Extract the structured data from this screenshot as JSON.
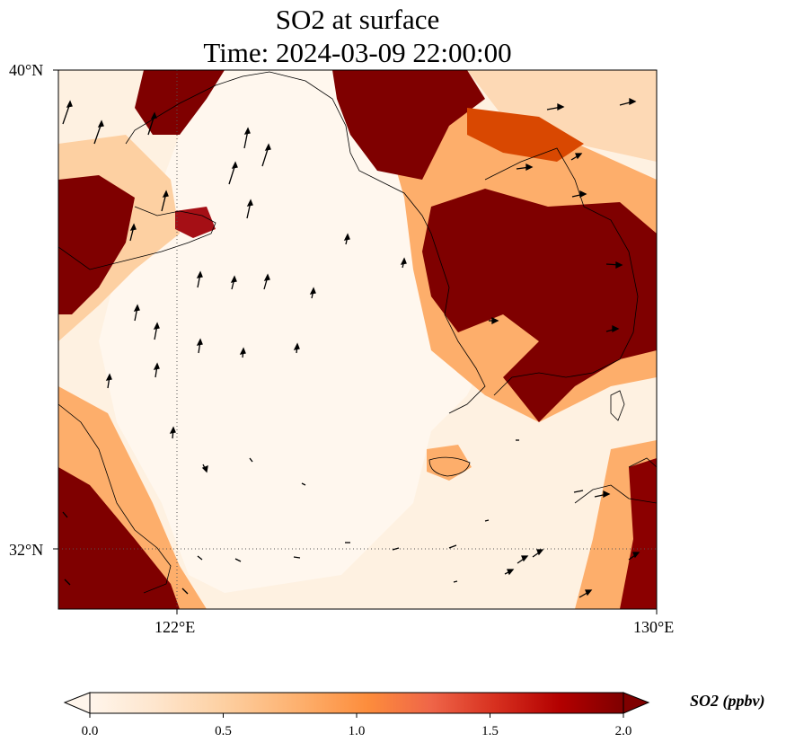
{
  "title": {
    "line1": "SO2 at surface",
    "line2": "Time: 2024-03-09 22:00:00"
  },
  "map": {
    "variable": "SO2",
    "units": "ppbv",
    "lat_range": [
      31.0,
      40.0
    ],
    "lon_range": [
      120.0,
      130.0
    ],
    "lat_ticks": [
      "40°N",
      "32°N"
    ],
    "lon_ticks": [
      "122°E",
      "130°E"
    ],
    "gridlines": {
      "lat": [
        32
      ],
      "lon": [
        122
      ],
      "style": "dotted"
    },
    "wind_vectors": "black arrows, mostly northward over the Yellow Sea and eastward over Korea",
    "high_concentration_regions": [
      "Liaodong Peninsula / Bohai Sea coast",
      "North Korea and South Korea inland",
      "Shandong Peninsula west coast",
      "Jiangsu / Shanghai coast",
      "Southern Japan (Kyushu)"
    ]
  },
  "colorbar": {
    "label": "SO2 (ppbv)",
    "ticks": [
      "0.0",
      "0.5",
      "1.0",
      "1.5",
      "2.0"
    ],
    "min": 0.0,
    "max": 2.0,
    "colormap": [
      "#fff5eb",
      "#fee6ce",
      "#fdd0a2",
      "#fdae6b",
      "#fd8d3c",
      "#f16913",
      "#d94801",
      "#a50000",
      "#7f0000"
    ],
    "extend": "both"
  }
}
